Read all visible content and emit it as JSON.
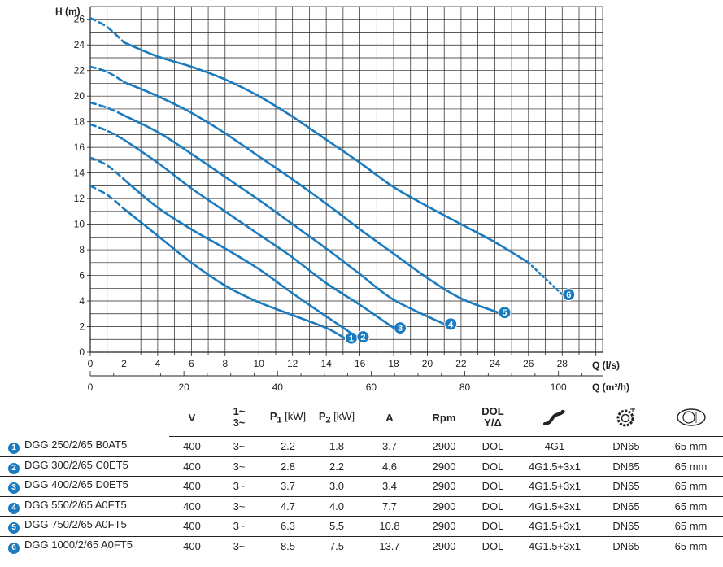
{
  "chart_data": {
    "type": "line",
    "ylabel": "H (m)",
    "xlabel": "Q (l/s)",
    "xlabel2": "Q (m³/h)",
    "xlim": [
      0,
      30.4
    ],
    "ylim": [
      0,
      27
    ],
    "x_ticks": [
      0,
      2,
      4,
      6,
      8,
      10,
      12,
      14,
      16,
      18,
      20,
      22,
      24,
      26,
      28
    ],
    "y_ticks": [
      0,
      2,
      4,
      6,
      8,
      10,
      12,
      14,
      16,
      18,
      20,
      22,
      24,
      26
    ],
    "x2_ticks": [
      0,
      20,
      40,
      60,
      80,
      100
    ],
    "grid": true,
    "series": [
      {
        "label": "1",
        "points": [
          [
            0,
            13.0
          ],
          [
            1,
            12.3
          ],
          [
            2,
            11.2
          ],
          [
            4,
            9.1
          ],
          [
            6,
            7.0
          ],
          [
            8,
            5.2
          ],
          [
            10,
            3.9
          ],
          [
            12,
            2.9
          ],
          [
            14,
            1.9
          ],
          [
            15.1,
            1.1
          ]
        ]
      },
      {
        "label": "2",
        "points": [
          [
            0,
            15.2
          ],
          [
            1,
            14.6
          ],
          [
            2,
            13.5
          ],
          [
            4,
            11.3
          ],
          [
            6,
            9.6
          ],
          [
            8,
            8.1
          ],
          [
            10,
            6.5
          ],
          [
            12,
            4.6
          ],
          [
            14,
            2.8
          ],
          [
            15.8,
            1.2
          ]
        ]
      },
      {
        "label": "3",
        "points": [
          [
            0,
            17.8
          ],
          [
            1,
            17.3
          ],
          [
            2,
            16.6
          ],
          [
            4,
            14.8
          ],
          [
            6,
            12.8
          ],
          [
            8,
            11.0
          ],
          [
            10,
            9.2
          ],
          [
            12,
            7.4
          ],
          [
            14,
            5.4
          ],
          [
            16,
            3.7
          ],
          [
            18,
            1.9
          ]
        ]
      },
      {
        "label": "4",
        "points": [
          [
            0,
            19.5
          ],
          [
            1,
            19.1
          ],
          [
            2,
            18.5
          ],
          [
            4,
            17.2
          ],
          [
            6,
            15.5
          ],
          [
            8,
            13.7
          ],
          [
            10,
            11.9
          ],
          [
            12,
            10.0
          ],
          [
            14,
            8.1
          ],
          [
            16,
            6.1
          ],
          [
            18,
            4.1
          ],
          [
            21,
            2.2
          ]
        ]
      },
      {
        "label": "5",
        "points": [
          [
            0,
            22.3
          ],
          [
            1,
            21.9
          ],
          [
            2,
            21.1
          ],
          [
            4,
            20.0
          ],
          [
            6,
            18.7
          ],
          [
            8,
            17.1
          ],
          [
            10,
            15.3
          ],
          [
            12,
            13.5
          ],
          [
            14,
            11.6
          ],
          [
            16,
            9.6
          ],
          [
            18,
            7.7
          ],
          [
            20,
            5.8
          ],
          [
            22,
            4.2
          ],
          [
            24.2,
            3.1
          ]
        ]
      },
      {
        "label": "6",
        "points": [
          [
            0,
            26.1
          ],
          [
            1,
            25.4
          ],
          [
            2,
            24.2
          ],
          [
            4,
            23.1
          ],
          [
            6,
            22.3
          ],
          [
            8,
            21.3
          ],
          [
            10,
            20.0
          ],
          [
            12,
            18.4
          ],
          [
            14,
            16.6
          ],
          [
            16,
            14.8
          ],
          [
            18,
            12.9
          ],
          [
            20,
            11.4
          ],
          [
            22,
            10.0
          ],
          [
            24,
            8.6
          ],
          [
            26,
            7.0
          ],
          [
            28,
            4.5
          ]
        ]
      }
    ]
  },
  "table": {
    "headers": {
      "v": "V",
      "phase_top": "1~",
      "phase_bottom": "3~",
      "p1_main": "P",
      "p1_sub": "1",
      "p1_unit": " [kW]",
      "p2_main": "P",
      "p2_sub": "2",
      "p2_unit": " [kW]",
      "a": "A",
      "rpm": "Rpm",
      "dol_top": "DOL",
      "dol_bottom": "Y/Δ"
    },
    "rows": [
      {
        "num": "1",
        "model": "DGG 250/2/65 B0AT5",
        "v": "400",
        "phase": "3~",
        "p1": "2.2",
        "p2": "1.8",
        "a": "3.7",
        "rpm": "2900",
        "start": "DOL",
        "cable": "4G1",
        "flange": "DN65",
        "passage": "65 mm"
      },
      {
        "num": "2",
        "model": "DGG 300/2/65 C0ET5",
        "v": "400",
        "phase": "3~",
        "p1": "2.8",
        "p2": "2.2",
        "a": "4.6",
        "rpm": "2900",
        "start": "DOL",
        "cable": "4G1.5+3x1",
        "flange": "DN65",
        "passage": "65 mm"
      },
      {
        "num": "3",
        "model": "DGG 400/2/65 D0ET5",
        "v": "400",
        "phase": "3~",
        "p1": "3.7",
        "p2": "3.0",
        "a": "3.4",
        "rpm": "2900",
        "start": "DOL",
        "cable": "4G1.5+3x1",
        "flange": "DN65",
        "passage": "65 mm"
      },
      {
        "num": "4",
        "model": "DGG 550/2/65 A0FT5",
        "v": "400",
        "phase": "3~",
        "p1": "4.7",
        "p2": "4.0",
        "a": "7.7",
        "rpm": "2900",
        "start": "DOL",
        "cable": "4G1.5+3x1",
        "flange": "DN65",
        "passage": "65 mm"
      },
      {
        "num": "5",
        "model": "DGG 750/2/65 A0FT5",
        "v": "400",
        "phase": "3~",
        "p1": "6.3",
        "p2": "5.5",
        "a": "10.8",
        "rpm": "2900",
        "start": "DOL",
        "cable": "4G1.5+3x1",
        "flange": "DN65",
        "passage": "65 mm"
      },
      {
        "num": "6",
        "model": "DGG 1000/2/65 A0FT5",
        "v": "400",
        "phase": "3~",
        "p1": "8.5",
        "p2": "7.5",
        "a": "13.7",
        "rpm": "2900",
        "start": "DOL",
        "cable": "4G1.5+3x1",
        "flange": "DN65",
        "passage": "65 mm"
      }
    ]
  },
  "colors": {
    "curve": "#1a7bc0",
    "grid": "#222222",
    "badge_text": "#ffffff"
  },
  "icons": {
    "cable": "cable-icon",
    "flange": "flange-icon",
    "passage": "free-passage-icon"
  }
}
